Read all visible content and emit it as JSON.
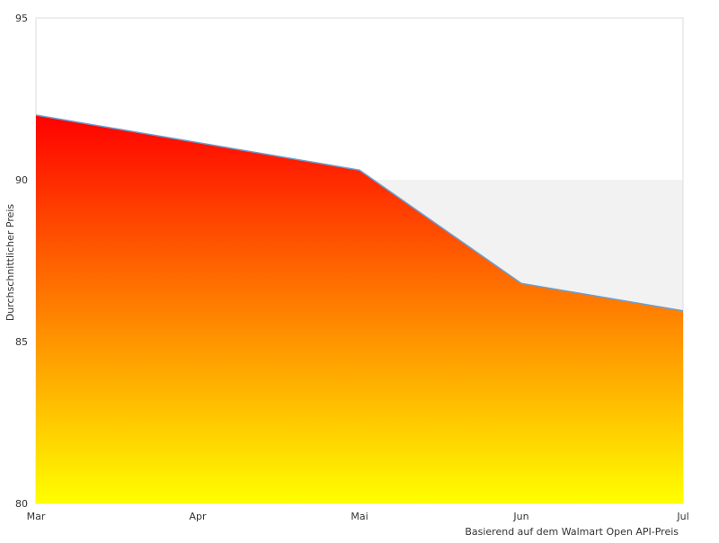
{
  "chart_data": {
    "type": "area",
    "title": "",
    "xlabel": "",
    "ylabel": "Durchschnittlicher Preis",
    "x": [
      "Mar",
      "Apr",
      "Mai",
      "Jun",
      "Jul"
    ],
    "series": [
      {
        "values": [
          92,
          null,
          90.3,
          86.8,
          85.95
        ]
      }
    ],
    "ylim": [
      80,
      95
    ],
    "yticks": [
      80,
      85,
      90,
      95
    ],
    "grid": false,
    "band": {
      "from": 80,
      "to": 90,
      "color": "#f2f2f2"
    },
    "fill_gradient": {
      "top": "#ff0000",
      "bottom": "#ffff00"
    },
    "line_color": "#6a9fd4",
    "source_note": "Basierend auf dem Walmart Open API-Preis"
  }
}
